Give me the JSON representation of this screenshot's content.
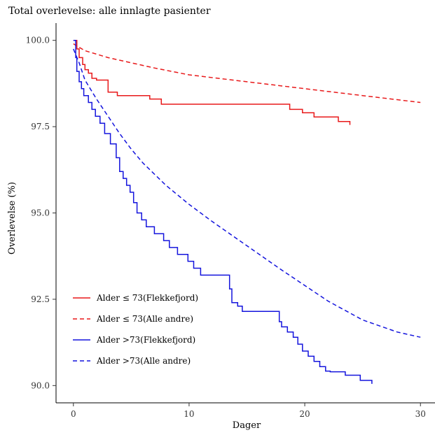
{
  "chart_data": {
    "type": "line",
    "title": "Total overlevelse: alle innlagte pasienter",
    "xlabel": "Dager",
    "ylabel": "Overlevelse (%)",
    "xlim": [
      -1.5,
      31.5
    ],
    "ylim": [
      89.5,
      100.5
    ],
    "x_ticks": [
      0,
      10,
      20,
      30
    ],
    "y_ticks": [
      90.0,
      92.5,
      95.0,
      97.5,
      100.0
    ],
    "x_tick_labels": [
      "0",
      "10",
      "20",
      "30"
    ],
    "y_tick_labels": [
      "90.0",
      "92.5",
      "95.0",
      "97.5",
      "100.0"
    ],
    "grid": false,
    "legend_position": "bottom-left",
    "series": [
      {
        "name": "Alder ≤ 73(Flekkefjord)",
        "color": "#e8191a",
        "style": "solid",
        "step": true,
        "x": [
          0,
          0.3,
          0.5,
          0.8,
          1.0,
          1.3,
          1.6,
          2.0,
          2.3,
          2.7,
          3.0,
          3.8,
          6.6,
          7.6,
          18.7,
          19.8,
          20.8,
          22.9,
          23.9
        ],
        "y": [
          100.0,
          99.75,
          99.5,
          99.3,
          99.15,
          99.05,
          98.9,
          98.85,
          98.85,
          98.85,
          98.5,
          98.4,
          98.3,
          98.15,
          98.0,
          97.9,
          97.78,
          97.65,
          97.55
        ]
      },
      {
        "name": "Alder ≤ 73(Alle andre)",
        "color": "#e8191a",
        "style": "dashed",
        "step": false,
        "x": [
          0,
          0.5,
          1,
          2,
          3,
          5,
          7,
          10,
          15,
          20,
          25,
          30
        ],
        "y": [
          99.9,
          99.8,
          99.7,
          99.6,
          99.5,
          99.35,
          99.2,
          99.0,
          98.8,
          98.6,
          98.4,
          98.2
        ]
      },
      {
        "name": "Alder >73(Flekkefjord)",
        "color": "#1414dd",
        "style": "solid",
        "step": true,
        "x": [
          0,
          0.2,
          0.3,
          0.5,
          0.7,
          0.9,
          1.3,
          1.6,
          1.9,
          2.3,
          2.7,
          3.2,
          3.7,
          4.0,
          4.3,
          4.6,
          4.9,
          5.2,
          5.5,
          5.9,
          6.3,
          7.0,
          7.8,
          8.3,
          9.0,
          9.9,
          10.4,
          11.0,
          13.5,
          13.7,
          14.2,
          14.6,
          17.8,
          18.0,
          18.5,
          19.0,
          19.4,
          19.8,
          20.3,
          20.8,
          21.3,
          21.8,
          22.2,
          23.5,
          24.8,
          25.8
        ],
        "y": [
          100.0,
          99.5,
          99.1,
          98.8,
          98.6,
          98.4,
          98.2,
          98.0,
          97.8,
          97.6,
          97.3,
          97.0,
          96.6,
          96.2,
          96.0,
          95.8,
          95.6,
          95.3,
          95.0,
          94.8,
          94.6,
          94.4,
          94.2,
          94.0,
          93.8,
          93.6,
          93.4,
          93.2,
          92.8,
          92.4,
          92.3,
          92.15,
          91.85,
          91.7,
          91.55,
          91.4,
          91.2,
          91.0,
          90.85,
          90.7,
          90.55,
          90.42,
          90.4,
          90.3,
          90.15,
          90.05
        ]
      },
      {
        "name": "Alder >73(Alle andre)",
        "color": "#1414dd",
        "style": "dashed",
        "step": false,
        "x": [
          0,
          0.5,
          1,
          2,
          3,
          4,
          5,
          6,
          8,
          10,
          12,
          15,
          18,
          20,
          22,
          25,
          28,
          30
        ],
        "y": [
          99.75,
          99.35,
          98.85,
          98.3,
          97.8,
          97.3,
          96.85,
          96.45,
          95.8,
          95.25,
          94.75,
          94.05,
          93.35,
          92.9,
          92.45,
          91.9,
          91.55,
          91.4
        ]
      }
    ]
  }
}
